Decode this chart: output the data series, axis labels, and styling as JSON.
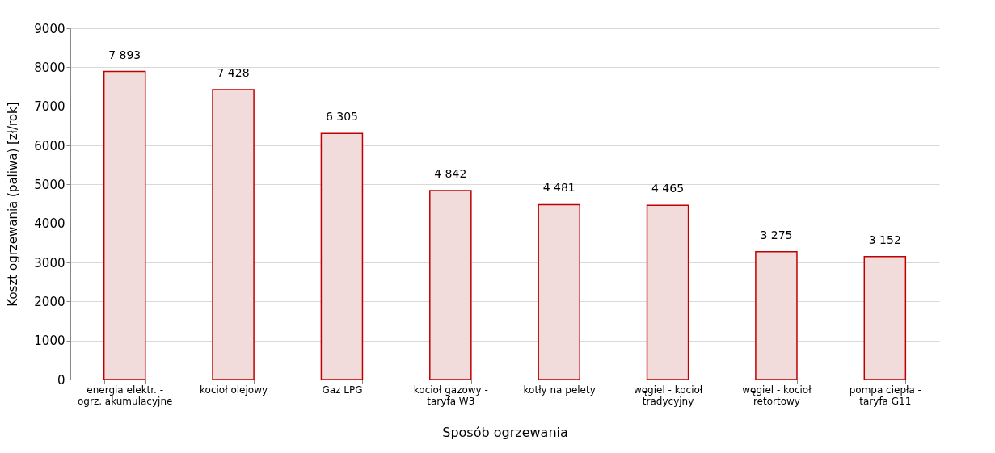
{
  "chart_data": {
    "type": "bar",
    "xlabel": "Sposób ogrzewania",
    "ylabel": "Koszt ogrzewania (paliwa) [zł/rok]",
    "categories": [
      "energia elektr. - ogrz. akumulacyjne",
      "kocioł olejowy",
      "Gaz LPG",
      "kocioł gazowy - taryfa W3",
      "kotły na pelety",
      "węgiel - kocioł tradycyjny",
      "węgiel - kocioł retortowy",
      "pompa ciepła - taryfa G11"
    ],
    "values": [
      7893,
      7428,
      6305,
      4842,
      4481,
      4465,
      3275,
      3152
    ],
    "value_labels": [
      "7 893",
      "7 428",
      "6 305",
      "4 842",
      "4 481",
      "4 465",
      "3 275",
      "3 152"
    ],
    "color": "#f2dcdb",
    "ylim": [
      0,
      9000
    ],
    "yticks": [
      0,
      1000,
      2000,
      3000,
      4000,
      5000,
      6000,
      7000,
      8000,
      9000
    ],
    "grid": "y"
  }
}
